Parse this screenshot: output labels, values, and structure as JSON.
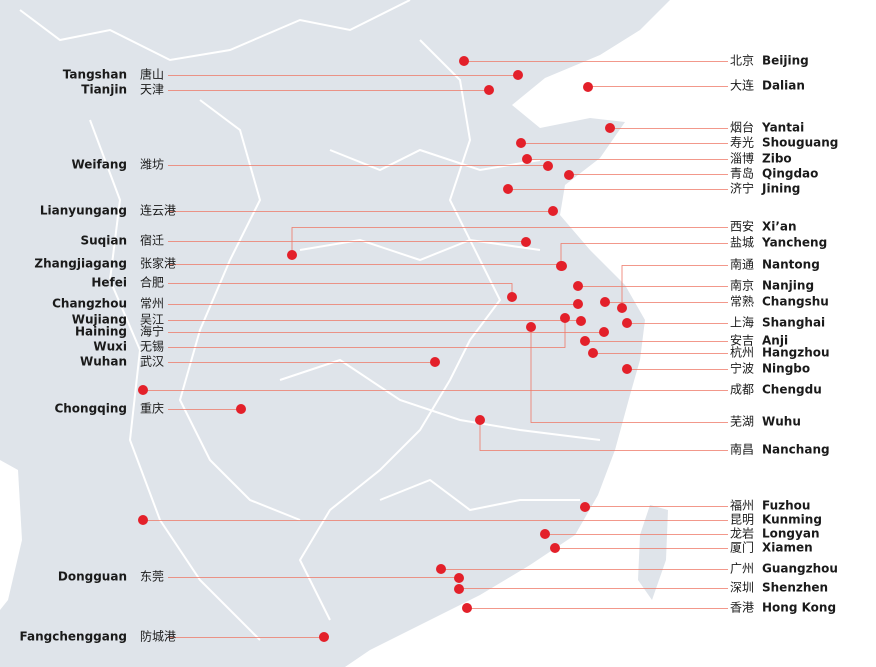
{
  "cities_left": [
    {
      "en": "Tangshan",
      "cn": "唐山"
    },
    {
      "en": "Tianjin",
      "cn": "天津"
    },
    {
      "en": "Weifang",
      "cn": "潍坊"
    },
    {
      "en": "Lianyungang",
      "cn": "连云港"
    },
    {
      "en": "Suqian",
      "cn": "宿迁"
    },
    {
      "en": "Zhangjiagang",
      "cn": "张家港"
    },
    {
      "en": "Hefei",
      "cn": "合肥"
    },
    {
      "en": "Changzhou",
      "cn": "常州"
    },
    {
      "en": "Wujiang",
      "cn": "吴江"
    },
    {
      "en": "Haining",
      "cn": "海宁"
    },
    {
      "en": "Wuxi",
      "cn": "无锡"
    },
    {
      "en": "Wuhan",
      "cn": "武汉"
    },
    {
      "en": "Chongqing",
      "cn": "重庆"
    },
    {
      "en": "Dongguan",
      "cn": "东莞"
    },
    {
      "en": "Fangchenggang",
      "cn": "防城港"
    }
  ],
  "cities_right": [
    {
      "cn": "北京",
      "en": "Beijing"
    },
    {
      "cn": "大连",
      "en": "Dalian"
    },
    {
      "cn": "烟台",
      "en": "Yantai"
    },
    {
      "cn": "寿光",
      "en": "Shouguang"
    },
    {
      "cn": "淄博",
      "en": "Zibo"
    },
    {
      "cn": "青岛",
      "en": "Qingdao"
    },
    {
      "cn": "济宁",
      "en": "Jining"
    },
    {
      "cn": "西安",
      "en": "Xi’an"
    },
    {
      "cn": "盐城",
      "en": "Yancheng"
    },
    {
      "cn": "南通",
      "en": "Nantong"
    },
    {
      "cn": "南京",
      "en": "Nanjing"
    },
    {
      "cn": "常熟",
      "en": "Changshu"
    },
    {
      "cn": "上海",
      "en": "Shanghai"
    },
    {
      "cn": "安吉",
      "en": "Anji"
    },
    {
      "cn": "杭州",
      "en": "Hangzhou"
    },
    {
      "cn": "宁波",
      "en": "Ningbo"
    },
    {
      "cn": "成都",
      "en": "Chengdu"
    },
    {
      "cn": "芜湖",
      "en": "Wuhu"
    },
    {
      "cn": "南昌",
      "en": "Nanchang"
    },
    {
      "cn": "福州",
      "en": "Fuzhou"
    },
    {
      "cn": "昆明",
      "en": "Kunming"
    },
    {
      "cn": "龙岩",
      "en": "Longyan"
    },
    {
      "cn": "厦门",
      "en": "Xiamen"
    },
    {
      "cn": "广州",
      "en": "Guangzhou"
    },
    {
      "cn": "深圳",
      "en": "Shenzhen"
    },
    {
      "cn": "香港",
      "en": "Hong Kong"
    }
  ]
}
